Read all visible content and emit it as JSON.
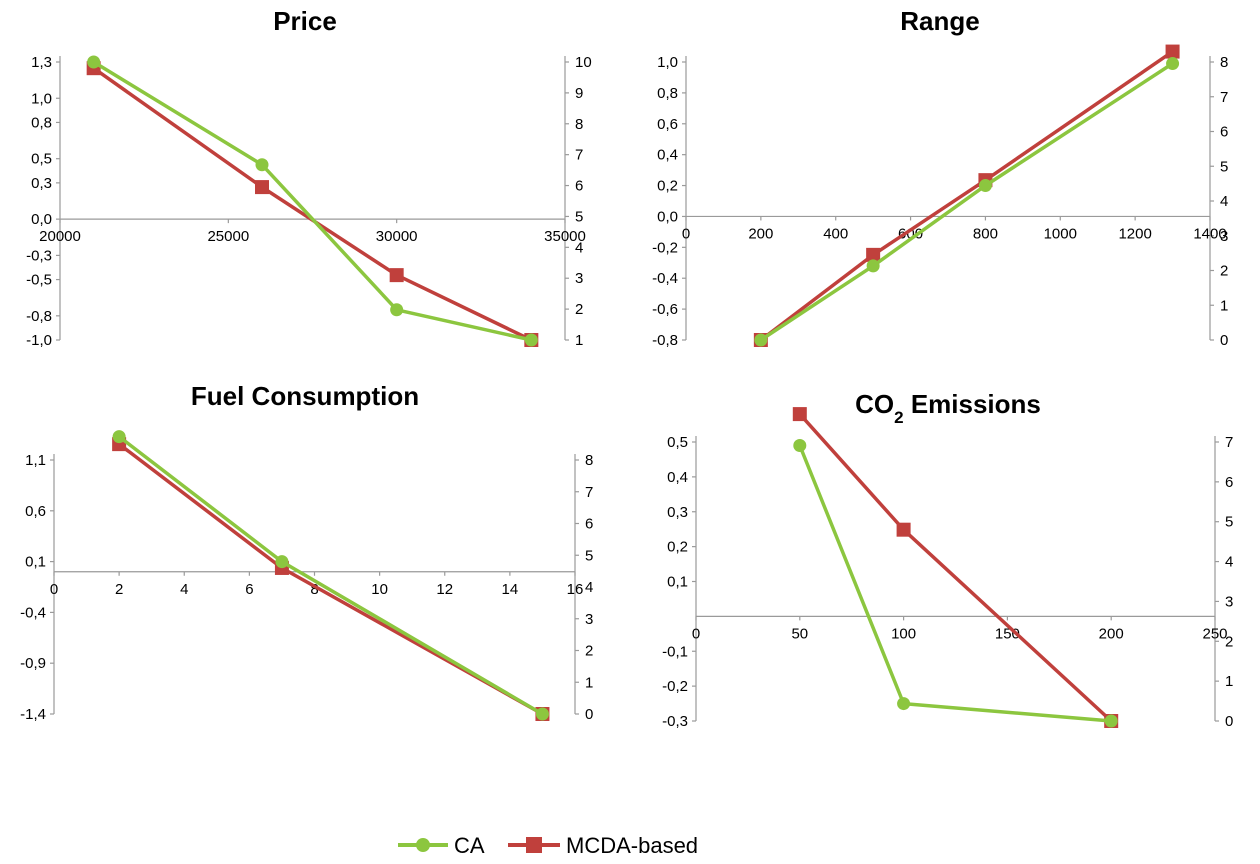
{
  "legend": {
    "items": [
      {
        "label": "CA",
        "color": "#8cc63f",
        "marker": "circle"
      },
      {
        "label": "MCDA-based",
        "color": "#c0403c",
        "marker": "square"
      }
    ]
  },
  "chart_data": [
    {
      "type": "line",
      "title": "Price",
      "xlim": [
        20000,
        35000
      ],
      "xticks": [
        "20000",
        "25000",
        "30000",
        "35000"
      ],
      "y_left_lim": [
        -1.0,
        1.3
      ],
      "y_left_ticks": [
        "1,3",
        "1,0",
        "0,8",
        "0,5",
        "0,3",
        "0,0",
        "-0,3",
        "-0,5",
        "-0,8",
        "-1,0"
      ],
      "y_right_lim": [
        1,
        10
      ],
      "y_right_ticks": [
        "10",
        "9",
        "8",
        "7",
        "6",
        "5",
        "4",
        "3",
        "2",
        "1"
      ],
      "series": [
        {
          "name": "CA",
          "axis": "left",
          "x": [
            21000,
            26000,
            30000,
            34000
          ],
          "y": [
            1.3,
            0.45,
            -0.75,
            -1.0
          ]
        },
        {
          "name": "MCDA-based",
          "axis": "right",
          "x": [
            21000,
            26000,
            30000,
            34000
          ],
          "y": [
            9.8,
            5.95,
            3.1,
            1.0
          ]
        }
      ]
    },
    {
      "type": "line",
      "title": "Range",
      "xlim": [
        0,
        1400
      ],
      "xticks": [
        "0",
        "200",
        "400",
        "600",
        "800",
        "1000",
        "1200",
        "1400"
      ],
      "y_left_lim": [
        -0.8,
        1.0
      ],
      "y_left_ticks": [
        "1,0",
        "0,8",
        "0,6",
        "0,4",
        "0,2",
        "0,0",
        "-0,2",
        "-0,4",
        "-0,6",
        "-0,8"
      ],
      "y_right_lim": [
        0,
        8
      ],
      "y_right_ticks": [
        "8",
        "7",
        "6",
        "5",
        "4",
        "3",
        "2",
        "1",
        "0"
      ],
      "series": [
        {
          "name": "CA",
          "axis": "left",
          "x": [
            200,
            500,
            800,
            1300
          ],
          "y": [
            -0.8,
            -0.32,
            0.2,
            0.99
          ]
        },
        {
          "name": "MCDA-based",
          "axis": "right",
          "x": [
            200,
            500,
            800,
            1300
          ],
          "y": [
            0.0,
            2.45,
            4.6,
            8.3
          ]
        }
      ]
    },
    {
      "type": "line",
      "title": "Fuel Consumption",
      "xlim": [
        0,
        16
      ],
      "xticks": [
        "0",
        "2",
        "4",
        "6",
        "8",
        "10",
        "12",
        "14",
        "16"
      ],
      "y_left_lim": [
        -1.4,
        1.1
      ],
      "y_left_ticks": [
        "1,1",
        "0,6",
        "0,1",
        "-0,4",
        "-0,9",
        "-1,4"
      ],
      "y_right_lim": [
        0,
        8
      ],
      "y_right_ticks": [
        "8",
        "7",
        "6",
        "5",
        "4",
        "3",
        "2",
        "1",
        "0"
      ],
      "series": [
        {
          "name": "CA",
          "axis": "left",
          "x": [
            2,
            7,
            15
          ],
          "y": [
            1.33,
            0.1,
            -1.4
          ]
        },
        {
          "name": "MCDA-based",
          "axis": "right",
          "x": [
            2,
            7,
            15
          ],
          "y": [
            8.5,
            4.6,
            0.0
          ]
        }
      ]
    },
    {
      "type": "line",
      "title": "CO",
      "title_subscript": "2",
      "title_suffix": " Emissions",
      "xlim": [
        0,
        250
      ],
      "xticks": [
        "0",
        "50",
        "100",
        "150",
        "200",
        "250"
      ],
      "y_left_lim": [
        -0.3,
        0.5
      ],
      "y_left_ticks": [
        "0,5",
        "0,4",
        "0,3",
        "0,2",
        "0,1",
        "-0,1",
        "-0,2",
        "-0,3"
      ],
      "y_right_lim": [
        0,
        7
      ],
      "y_right_ticks": [
        "7",
        "6",
        "5",
        "4",
        "3",
        "2",
        "1",
        "0"
      ],
      "series": [
        {
          "name": "CA",
          "axis": "left",
          "x": [
            50,
            100,
            200
          ],
          "y": [
            0.49,
            -0.25,
            -0.3
          ]
        },
        {
          "name": "MCDA-based",
          "axis": "right",
          "x": [
            50,
            100,
            200
          ],
          "y": [
            7.7,
            4.8,
            0.0
          ]
        }
      ]
    }
  ]
}
